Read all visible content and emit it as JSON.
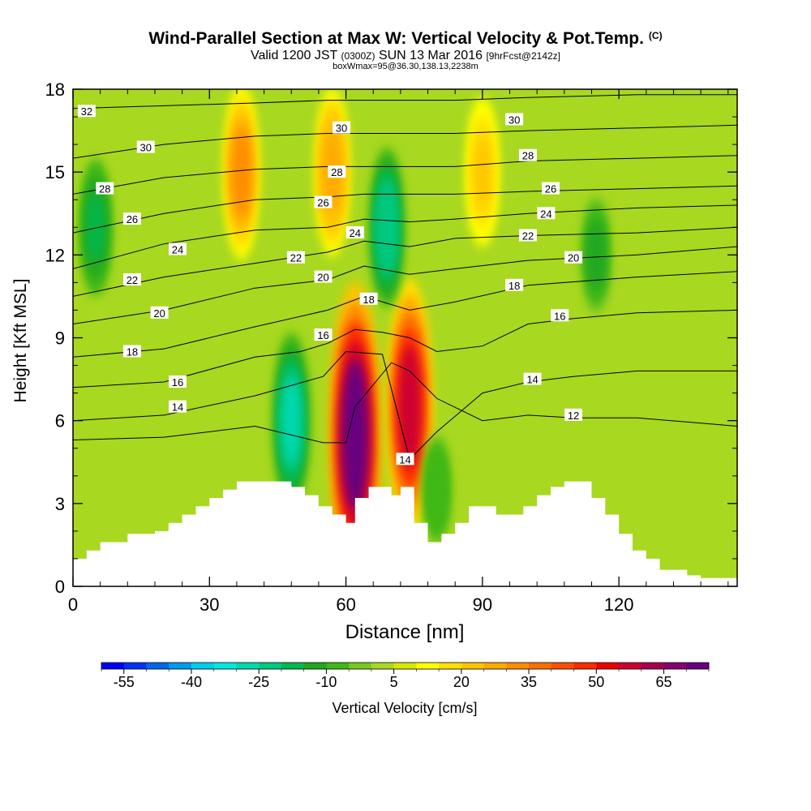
{
  "title": {
    "main": "Wind-Parallel Section at Max W: Vertical Velocity & Pot.Temp.",
    "mark": "(C)",
    "valid": "Valid 1200 JST",
    "utc": "(0300Z)",
    "date": "SUN 13 Mar 2016",
    "forecast": "[9hrFcst@2142z]",
    "box": "boxWmax=95@36.30,138.13,2238m"
  },
  "chart_data": {
    "type": "heatmap",
    "xlabel": "Distance [nm]",
    "ylabel": "Height [Kft MSL]",
    "xlim": [
      0,
      146
    ],
    "ylim": [
      0,
      18
    ],
    "x_ticks": [
      0,
      30,
      60,
      90,
      120
    ],
    "y_ticks": [
      0,
      3,
      6,
      9,
      12,
      15,
      18
    ],
    "colorbar": {
      "label": "Vertical Velocity [cm/s]",
      "tick_labels": [
        "-55",
        "-40",
        "-25",
        "-10",
        "5",
        "20",
        "35",
        "50",
        "65"
      ],
      "tick_values": [
        -55,
        -40,
        -25,
        -10,
        5,
        20,
        35,
        50,
        65
      ],
      "colors": [
        "#0000ff",
        "#0033f8",
        "#0066ee",
        "#0099ee",
        "#00ccee",
        "#00e8e0",
        "#00d8b0",
        "#00c880",
        "#00b850",
        "#20a820",
        "#40b818",
        "#78c820",
        "#a8d820",
        "#d8e800",
        "#ffff00",
        "#ffe000",
        "#ffc400",
        "#ffa800",
        "#ff8c00",
        "#ff6e00",
        "#ff4e00",
        "#ff2a00",
        "#ee0000",
        "#cc0030",
        "#a80050",
        "#880070",
        "#680080"
      ]
    },
    "terrain_height_kft": {
      "x": [
        0,
        3,
        6,
        9,
        12,
        15,
        18,
        21,
        24,
        27,
        30,
        33,
        36,
        45,
        48,
        51,
        54,
        57,
        60,
        62,
        65,
        68,
        70,
        72,
        75,
        78,
        81,
        84,
        87,
        90,
        93,
        96,
        99,
        102,
        105,
        108,
        111,
        114,
        117,
        120,
        123,
        126,
        129,
        132,
        135,
        138,
        141,
        146
      ],
      "y": [
        1.0,
        1.3,
        1.6,
        1.6,
        1.9,
        1.9,
        2.0,
        2.3,
        2.6,
        2.9,
        3.2,
        3.5,
        3.8,
        3.8,
        3.6,
        3.3,
        2.9,
        2.6,
        2.3,
        3.2,
        3.6,
        3.6,
        3.3,
        3.6,
        2.3,
        1.6,
        1.9,
        2.3,
        2.9,
        2.9,
        2.6,
        2.6,
        2.9,
        3.3,
        3.6,
        3.8,
        3.8,
        3.2,
        2.6,
        1.9,
        1.3,
        1.0,
        0.6,
        0.6,
        0.4,
        0.3,
        0.3,
        0.3
      ]
    },
    "velocity_features": [
      {
        "center_nm": 62,
        "height_kft": 5.5,
        "value": 70
      },
      {
        "center_nm": 74,
        "height_kft": 6.5,
        "value": 55
      },
      {
        "center_nm": 48,
        "height_kft": 6.0,
        "value": -30
      },
      {
        "center_nm": 69,
        "height_kft": 13.0,
        "value": -25
      },
      {
        "center_nm": 5,
        "height_kft": 13.0,
        "value": -18
      },
      {
        "center_nm": 115,
        "height_kft": 12.0,
        "value": -12
      },
      {
        "center_nm": 80,
        "height_kft": 3.5,
        "value": -10
      },
      {
        "center_nm": 37,
        "height_kft": 15.0,
        "value": 30
      },
      {
        "center_nm": 57,
        "height_kft": 15.0,
        "value": 28
      },
      {
        "center_nm": 90,
        "height_kft": 15.0,
        "value": 22
      }
    ],
    "isentropes": [
      {
        "label": "12",
        "points": [
          [
            0,
            5.3
          ],
          [
            20,
            5.4
          ],
          [
            40,
            5.8
          ],
          [
            55,
            5.2
          ],
          [
            60,
            5.2
          ],
          [
            62,
            6.5
          ],
          [
            70,
            8.1
          ],
          [
            74,
            7.8
          ],
          [
            80,
            6.8
          ],
          [
            90,
            6.0
          ],
          [
            100,
            6.2
          ],
          [
            110,
            6.1
          ],
          [
            124,
            6.1
          ],
          [
            146,
            5.8
          ]
        ]
      },
      {
        "label": "14",
        "points": [
          [
            0,
            6.0
          ],
          [
            20,
            6.2
          ],
          [
            40,
            6.9
          ],
          [
            55,
            7.6
          ],
          [
            60,
            8.5
          ],
          [
            68,
            8.4
          ],
          [
            74,
            4.6
          ],
          [
            80,
            5.6
          ],
          [
            90,
            7.0
          ],
          [
            100,
            7.4
          ],
          [
            110,
            7.6
          ],
          [
            124,
            7.8
          ],
          [
            146,
            7.8
          ]
        ]
      },
      {
        "label": "16",
        "points": [
          [
            0,
            7.2
          ],
          [
            20,
            7.4
          ],
          [
            40,
            8.3
          ],
          [
            50,
            8.5
          ],
          [
            56,
            8.8
          ],
          [
            62,
            9.3
          ],
          [
            68,
            9.2
          ],
          [
            74,
            9.0
          ],
          [
            80,
            8.5
          ],
          [
            90,
            8.7
          ],
          [
            100,
            9.5
          ],
          [
            110,
            9.7
          ],
          [
            124,
            9.9
          ],
          [
            146,
            10.0
          ]
        ]
      },
      {
        "label": "18",
        "points": [
          [
            0,
            8.3
          ],
          [
            20,
            8.6
          ],
          [
            40,
            9.4
          ],
          [
            56,
            10.0
          ],
          [
            64,
            10.5
          ],
          [
            74,
            10.0
          ],
          [
            84,
            10.3
          ],
          [
            100,
            10.9
          ],
          [
            124,
            11.2
          ],
          [
            146,
            11.4
          ]
        ]
      },
      {
        "label": "20",
        "points": [
          [
            0,
            9.5
          ],
          [
            20,
            10.0
          ],
          [
            40,
            10.8
          ],
          [
            56,
            11.1
          ],
          [
            64,
            11.6
          ],
          [
            74,
            11.3
          ],
          [
            84,
            11.5
          ],
          [
            100,
            11.8
          ],
          [
            124,
            12.0
          ],
          [
            146,
            12.3
          ]
        ]
      },
      {
        "label": "22",
        "points": [
          [
            0,
            10.5
          ],
          [
            20,
            11.2
          ],
          [
            40,
            11.7
          ],
          [
            56,
            12.1
          ],
          [
            64,
            12.5
          ],
          [
            74,
            12.3
          ],
          [
            84,
            12.6
          ],
          [
            100,
            12.7
          ],
          [
            124,
            12.8
          ],
          [
            146,
            13.0
          ]
        ]
      },
      {
        "label": "24",
        "points": [
          [
            0,
            11.5
          ],
          [
            20,
            12.4
          ],
          [
            40,
            12.9
          ],
          [
            56,
            13.0
          ],
          [
            64,
            13.3
          ],
          [
            74,
            13.2
          ],
          [
            84,
            13.3
          ],
          [
            100,
            13.5
          ],
          [
            124,
            13.7
          ],
          [
            146,
            13.8
          ]
        ]
      },
      {
        "label": "26",
        "points": [
          [
            0,
            12.8
          ],
          [
            20,
            13.5
          ],
          [
            40,
            14.0
          ],
          [
            56,
            14.1
          ],
          [
            64,
            14.2
          ],
          [
            74,
            14.2
          ],
          [
            84,
            14.2
          ],
          [
            100,
            14.3
          ],
          [
            124,
            14.4
          ],
          [
            146,
            14.5
          ]
        ]
      },
      {
        "label": "28",
        "points": [
          [
            0,
            14.2
          ],
          [
            20,
            14.8
          ],
          [
            40,
            15.1
          ],
          [
            56,
            15.2
          ],
          [
            64,
            15.2
          ],
          [
            74,
            15.2
          ],
          [
            84,
            15.2
          ],
          [
            100,
            15.4
          ],
          [
            124,
            15.5
          ],
          [
            146,
            15.6
          ]
        ]
      },
      {
        "label": "30",
        "points": [
          [
            0,
            15.5
          ],
          [
            20,
            16.0
          ],
          [
            40,
            16.3
          ],
          [
            56,
            16.4
          ],
          [
            64,
            16.4
          ],
          [
            74,
            16.4
          ],
          [
            84,
            16.4
          ],
          [
            100,
            16.5
          ],
          [
            124,
            16.6
          ],
          [
            146,
            16.7
          ]
        ]
      },
      {
        "label": "32",
        "points": [
          [
            0,
            17.3
          ],
          [
            20,
            17.4
          ],
          [
            40,
            17.5
          ],
          [
            56,
            17.6
          ],
          [
            64,
            17.6
          ],
          [
            74,
            17.6
          ],
          [
            84,
            17.6
          ],
          [
            100,
            17.7
          ],
          [
            124,
            17.8
          ],
          [
            146,
            17.8
          ]
        ]
      }
    ],
    "contour_labels": [
      {
        "text": "32",
        "x": 3,
        "y": 17.2
      },
      {
        "text": "30",
        "x": 16,
        "y": 15.9
      },
      {
        "text": "30",
        "x": 59,
        "y": 16.6
      },
      {
        "text": "30",
        "x": 97,
        "y": 16.9
      },
      {
        "text": "28",
        "x": 7,
        "y": 14.4
      },
      {
        "text": "28",
        "x": 58,
        "y": 15.0
      },
      {
        "text": "28",
        "x": 100,
        "y": 15.6
      },
      {
        "text": "26",
        "x": 13,
        "y": 13.3
      },
      {
        "text": "26",
        "x": 55,
        "y": 13.9
      },
      {
        "text": "26",
        "x": 105,
        "y": 14.4
      },
      {
        "text": "24",
        "x": 23,
        "y": 12.2
      },
      {
        "text": "24",
        "x": 62,
        "y": 12.8
      },
      {
        "text": "24",
        "x": 104,
        "y": 13.5
      },
      {
        "text": "22",
        "x": 13,
        "y": 11.1
      },
      {
        "text": "22",
        "x": 49,
        "y": 11.9
      },
      {
        "text": "22",
        "x": 100,
        "y": 12.7
      },
      {
        "text": "20",
        "x": 19,
        "y": 9.9
      },
      {
        "text": "20",
        "x": 55,
        "y": 11.2
      },
      {
        "text": "20",
        "x": 110,
        "y": 11.9
      },
      {
        "text": "18",
        "x": 13,
        "y": 8.5
      },
      {
        "text": "18",
        "x": 65,
        "y": 10.4
      },
      {
        "text": "18",
        "x": 97,
        "y": 10.9
      },
      {
        "text": "16",
        "x": 23,
        "y": 7.4
      },
      {
        "text": "16",
        "x": 55,
        "y": 9.1
      },
      {
        "text": "16",
        "x": 107,
        "y": 9.8
      },
      {
        "text": "14",
        "x": 23,
        "y": 6.5
      },
      {
        "text": "14",
        "x": 73,
        "y": 4.6
      },
      {
        "text": "14",
        "x": 101,
        "y": 7.5
      },
      {
        "text": "12",
        "x": 110,
        "y": 6.2
      }
    ]
  }
}
